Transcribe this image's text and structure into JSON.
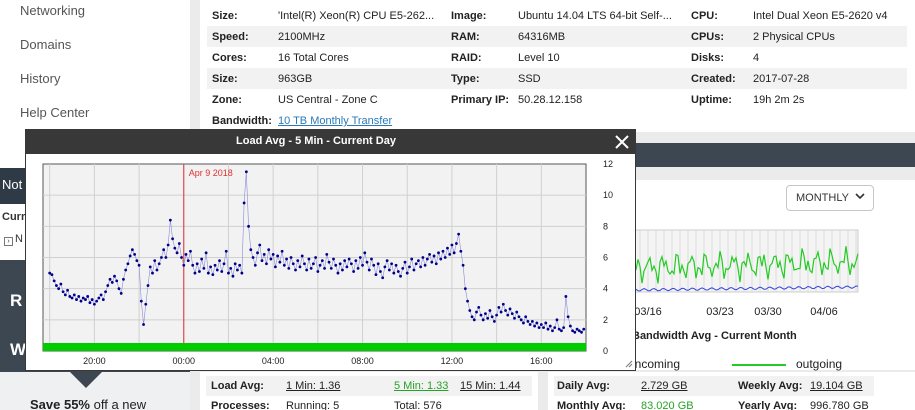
{
  "sidebar": {
    "items": [
      {
        "label": "Networking"
      },
      {
        "label": "Domains"
      },
      {
        "label": "History"
      },
      {
        "label": "Help Center"
      }
    ],
    "notification_label": "Not",
    "curr_label": "Curr",
    "curr_item": "N",
    "promo_letters": [
      "R",
      "W"
    ],
    "promo_bold": "Save 55%",
    "promo_rest": " off a new"
  },
  "server": {
    "rows": [
      {
        "c1": "Size:",
        "v1": "'Intel(R) Xeon(R) CPU E5-262...",
        "c2": "Image:",
        "v2": "Ubuntu 14.04 LTS 64-bit Self-...",
        "c3": "CPU:",
        "v3": "Intel Dual Xeon E5-2620 v4"
      },
      {
        "c1": "Speed:",
        "v1": "2100MHz",
        "c2": "RAM:",
        "v2": "64316MB",
        "c3": "CPUs:",
        "v3": "2 Physical CPUs"
      },
      {
        "c1": "Cores:",
        "v1": "16 Total Cores",
        "c2": "RAID:",
        "v2": "Level 10",
        "c3": "Disks:",
        "v3": "4"
      },
      {
        "c1": "Size:",
        "v1": "963GB",
        "c2": "Type:",
        "v2": "SSD",
        "c3": "Created:",
        "v3": "2017-07-28"
      },
      {
        "c1": "Zone:",
        "v1": "US Central - Zone C",
        "c2": "Primary IP:",
        "v2": "50.28.12.158",
        "c3": "Uptime:",
        "v3": "19h 2m 2s"
      }
    ],
    "bandwidth_label": "Bandwidth:",
    "bandwidth_value": "10 TB Monthly Transfer"
  },
  "bandwidth": {
    "dropdown": "MONTHLY",
    "title": "Bandwidth Avg - Current Month",
    "legend_incoming": "incoming",
    "legend_outgoing": "outgoing",
    "incoming_color": "#3344dd",
    "outgoing_color": "#22cc22",
    "x_ticks": [
      "03/16",
      "03/23",
      "03/30",
      "04/06"
    ],
    "stats": [
      {
        "label": "Daily Avg:",
        "value": "2.729 GB",
        "label2": "Weekly Avg:",
        "value2": "19.104 GB"
      },
      {
        "label": "Monthly Avg:",
        "value": "83.020 GB",
        "label2": "Yearly Avg:",
        "value2": "996.780 GB"
      }
    ]
  },
  "load": {
    "load_label": "Load Avg:",
    "min1": "1 Min: 1.36",
    "min5": "5 Min: 1.33",
    "min15": "15 Min: 1.44",
    "proc_label": "Processes:",
    "running": "Running: 5",
    "total": "Total: 576"
  },
  "modal": {
    "title": "Load Avg - 5 Min - Current Day"
  },
  "chart_data": {
    "type": "scatter",
    "title": "Load Avg - 5 Min - Current Day",
    "series": [
      {
        "color": "#00008b",
        "points": [
          [
            0,
            5.0
          ],
          [
            0.1,
            4.9
          ],
          [
            0.2,
            4.5
          ],
          [
            0.3,
            4.2
          ],
          [
            0.4,
            4.0
          ],
          [
            0.5,
            4.3
          ],
          [
            0.6,
            3.8
          ],
          [
            0.7,
            3.6
          ],
          [
            0.8,
            3.9
          ],
          [
            0.9,
            3.5
          ],
          [
            1.0,
            3.4
          ],
          [
            1.1,
            3.6
          ],
          [
            1.2,
            3.3
          ],
          [
            1.3,
            3.5
          ],
          [
            1.4,
            3.2
          ],
          [
            1.5,
            3.4
          ],
          [
            1.6,
            3.3
          ],
          [
            1.7,
            3.5
          ],
          [
            1.8,
            3.1
          ],
          [
            1.9,
            3.3
          ],
          [
            2.0,
            3.0
          ],
          [
            2.1,
            3.2
          ],
          [
            2.2,
            3.4
          ],
          [
            2.3,
            3.6
          ],
          [
            2.4,
            3.3
          ],
          [
            2.5,
            3.8
          ],
          [
            2.6,
            4.2
          ],
          [
            2.7,
            4.6
          ],
          [
            2.8,
            4.4
          ],
          [
            2.9,
            4.8
          ],
          [
            3.0,
            4.5
          ],
          [
            3.1,
            4.0
          ],
          [
            3.2,
            3.7
          ],
          [
            3.3,
            4.6
          ],
          [
            3.4,
            5.2
          ],
          [
            3.5,
            5.6
          ],
          [
            3.6,
            6.1
          ],
          [
            3.7,
            6.5
          ],
          [
            3.8,
            6.2
          ],
          [
            3.9,
            5.8
          ],
          [
            4.0,
            5.5
          ],
          [
            4.1,
            3.2
          ],
          [
            4.2,
            1.7
          ],
          [
            4.3,
            3.0
          ],
          [
            4.4,
            4.2
          ],
          [
            4.5,
            5.4
          ],
          [
            4.6,
            5.0
          ],
          [
            4.7,
            5.8
          ],
          [
            4.8,
            5.2
          ],
          [
            4.9,
            5.6
          ],
          [
            5.0,
            6.0
          ],
          [
            5.1,
            6.5
          ],
          [
            5.2,
            6.0
          ],
          [
            5.3,
            6.8
          ],
          [
            5.4,
            8.4
          ],
          [
            5.5,
            7.2
          ],
          [
            5.6,
            6.6
          ],
          [
            5.7,
            6.3
          ],
          [
            5.8,
            6.9
          ],
          [
            5.9,
            6.0
          ],
          [
            6.0,
            5.5
          ],
          [
            6.1,
            6.2
          ],
          [
            6.2,
            5.8
          ],
          [
            6.3,
            6.4
          ],
          [
            6.4,
            5.5
          ],
          [
            6.5,
            5.0
          ],
          [
            6.6,
            5.6
          ],
          [
            6.7,
            5.1
          ],
          [
            6.8,
            5.9
          ],
          [
            6.9,
            5.3
          ],
          [
            7.0,
            6.3
          ],
          [
            7.1,
            5.0
          ],
          [
            7.2,
            5.4
          ],
          [
            7.3,
            4.9
          ],
          [
            7.4,
            5.5
          ],
          [
            7.5,
            5.2
          ],
          [
            7.6,
            5.8
          ],
          [
            7.7,
            5.1
          ],
          [
            7.8,
            5.6
          ],
          [
            7.9,
            6.4
          ],
          [
            8.0,
            5.0
          ],
          [
            8.1,
            5.3
          ],
          [
            8.2,
            4.8
          ],
          [
            8.3,
            5.6
          ],
          [
            8.4,
            5.2
          ],
          [
            8.5,
            5.5
          ],
          [
            8.6,
            5.0
          ],
          [
            8.7,
            9.5
          ],
          [
            8.8,
            11.5
          ],
          [
            8.9,
            8.0
          ],
          [
            9.0,
            6.5
          ],
          [
            9.1,
            6.0
          ],
          [
            9.2,
            5.5
          ],
          [
            9.3,
            6.3
          ],
          [
            9.4,
            6.8
          ],
          [
            9.5,
            5.8
          ],
          [
            9.6,
            6.2
          ],
          [
            9.7,
            5.6
          ],
          [
            9.8,
            6.5
          ],
          [
            9.9,
            5.9
          ],
          [
            10.0,
            6.2
          ],
          [
            10.1,
            5.4
          ],
          [
            10.2,
            6.1
          ],
          [
            10.3,
            5.7
          ],
          [
            10.4,
            6.4
          ],
          [
            10.5,
            5.5
          ],
          [
            10.6,
            5.9
          ],
          [
            10.7,
            5.3
          ],
          [
            10.8,
            6.0
          ],
          [
            10.9,
            5.6
          ],
          [
            11.0,
            5.2
          ],
          [
            11.1,
            5.8
          ],
          [
            11.2,
            5.4
          ],
          [
            11.3,
            6.1
          ],
          [
            11.4,
            5.6
          ],
          [
            11.5,
            5.2
          ],
          [
            11.6,
            5.9
          ],
          [
            11.7,
            5.3
          ],
          [
            11.8,
            5.6
          ],
          [
            11.9,
            6.0
          ],
          [
            12.0,
            5.1
          ],
          [
            12.1,
            5.5
          ],
          [
            12.2,
            5.8
          ],
          [
            12.3,
            5.3
          ],
          [
            12.4,
            6.2
          ],
          [
            12.5,
            5.7
          ],
          [
            12.6,
            5.3
          ],
          [
            12.7,
            5.9
          ],
          [
            12.8,
            5.5
          ],
          [
            12.9,
            5.0
          ],
          [
            13.0,
            5.6
          ],
          [
            13.1,
            5.2
          ],
          [
            13.2,
            5.8
          ],
          [
            13.3,
            5.4
          ],
          [
            13.4,
            5.9
          ],
          [
            13.5,
            5.6
          ],
          [
            13.6,
            5.1
          ],
          [
            13.7,
            5.8
          ],
          [
            13.8,
            5.3
          ],
          [
            13.9,
            6.0
          ],
          [
            14.0,
            5.5
          ],
          [
            14.1,
            6.3
          ],
          [
            14.2,
            5.7
          ],
          [
            14.3,
            5.2
          ],
          [
            14.4,
            5.9
          ],
          [
            14.5,
            5.5
          ],
          [
            14.6,
            4.9
          ],
          [
            14.7,
            5.6
          ],
          [
            14.8,
            5.1
          ],
          [
            14.9,
            4.7
          ],
          [
            15.0,
            5.4
          ],
          [
            15.1,
            5.8
          ],
          [
            15.2,
            5.2
          ],
          [
            15.3,
            5.6
          ],
          [
            15.4,
            5.0
          ],
          [
            15.5,
            5.5
          ],
          [
            15.6,
            5.1
          ],
          [
            15.7,
            4.8
          ],
          [
            15.8,
            5.3
          ],
          [
            15.9,
            5.7
          ],
          [
            16.0,
            5.0
          ],
          [
            16.1,
            5.4
          ],
          [
            16.2,
            5.9
          ],
          [
            16.3,
            5.2
          ],
          [
            16.4,
            5.6
          ],
          [
            16.5,
            5.8
          ],
          [
            16.6,
            5.4
          ],
          [
            16.7,
            6.0
          ],
          [
            16.8,
            5.5
          ],
          [
            16.9,
            5.9
          ],
          [
            17.0,
            6.2
          ],
          [
            17.1,
            5.7
          ],
          [
            17.2,
            6.1
          ],
          [
            17.3,
            5.6
          ],
          [
            17.4,
            6.3
          ],
          [
            17.5,
            5.9
          ],
          [
            17.6,
            6.4
          ],
          [
            17.7,
            6.0
          ],
          [
            17.8,
            6.6
          ],
          [
            17.9,
            6.2
          ],
          [
            18.0,
            6.8
          ],
          [
            18.1,
            6.3
          ],
          [
            18.2,
            6.9
          ],
          [
            18.3,
            7.5
          ],
          [
            18.4,
            6.4
          ],
          [
            18.5,
            5.5
          ],
          [
            18.6,
            4.0
          ],
          [
            18.7,
            3.2
          ],
          [
            18.8,
            2.6
          ],
          [
            18.9,
            2.2
          ],
          [
            19.0,
            2.0
          ],
          [
            19.1,
            2.5
          ],
          [
            19.2,
            2.8
          ],
          [
            19.3,
            2.3
          ],
          [
            19.4,
            2.0
          ],
          [
            19.5,
            2.4
          ],
          [
            19.6,
            2.1
          ],
          [
            19.7,
            2.6
          ],
          [
            19.8,
            2.2
          ],
          [
            19.9,
            1.9
          ],
          [
            20.0,
            2.3
          ],
          [
            20.1,
            2.8
          ],
          [
            20.2,
            2.5
          ],
          [
            20.3,
            3.0
          ],
          [
            20.4,
            2.6
          ],
          [
            20.5,
            2.3
          ],
          [
            20.6,
            2.7
          ],
          [
            20.7,
            2.4
          ],
          [
            20.8,
            2.1
          ],
          [
            20.9,
            2.5
          ],
          [
            21.0,
            2.2
          ],
          [
            21.1,
            2.0
          ],
          [
            21.2,
            1.8
          ],
          [
            21.3,
            2.2
          ],
          [
            21.4,
            1.9
          ],
          [
            21.5,
            1.7
          ],
          [
            21.6,
            1.9
          ],
          [
            21.7,
            1.6
          ],
          [
            21.8,
            1.8
          ],
          [
            21.9,
            1.5
          ],
          [
            22.0,
            1.7
          ],
          [
            22.1,
            1.5
          ],
          [
            22.2,
            1.8
          ],
          [
            22.3,
            1.4
          ],
          [
            22.4,
            1.6
          ],
          [
            22.5,
            1.3
          ],
          [
            22.6,
            1.5
          ],
          [
            22.7,
            2.0
          ],
          [
            22.8,
            1.4
          ],
          [
            22.9,
            1.3
          ],
          [
            23.0,
            1.5
          ],
          [
            23.1,
            3.5
          ],
          [
            23.2,
            2.2
          ],
          [
            23.3,
            1.6
          ],
          [
            23.4,
            1.3
          ],
          [
            23.5,
            1.2
          ],
          [
            23.6,
            1.4
          ],
          [
            23.7,
            1.3
          ],
          [
            23.8,
            1.2
          ],
          [
            23.9,
            1.4
          ]
        ]
      }
    ],
    "x_ticks": [
      "20:00",
      "00:00",
      "04:00",
      "08:00",
      "12:00",
      "16:00"
    ],
    "y_ticks": [
      "0",
      "2",
      "4",
      "6",
      "8",
      "10",
      "12"
    ],
    "ylim": [
      0,
      12
    ],
    "marker_label": "Apr 9 2018",
    "marker_color": "#e03030",
    "grid": true
  }
}
